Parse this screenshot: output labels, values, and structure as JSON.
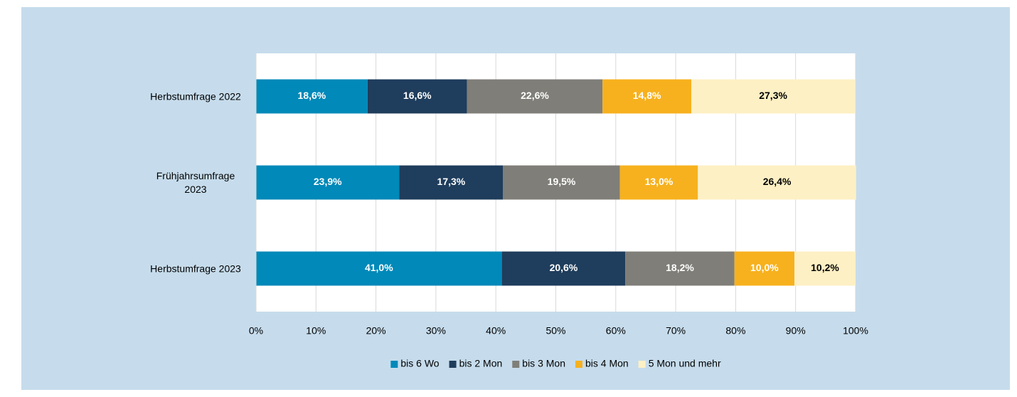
{
  "chart_data": {
    "type": "stacked_barh",
    "categories": [
      "Herbstumfrage 2022",
      "Frühjahrsumfrage 2023",
      "Herbstumfrage 2023"
    ],
    "series": [
      {
        "name": "bis 6 Wo",
        "color": "#0089b9",
        "label_color": "#ffffff",
        "values": [
          18.6,
          23.9,
          41.0
        ],
        "value_labels": [
          "18,6%",
          "23,9%",
          "41,0%"
        ]
      },
      {
        "name": "bis 2 Mon",
        "color": "#1f3d5c",
        "label_color": "#ffffff",
        "values": [
          16.6,
          17.3,
          20.6
        ],
        "value_labels": [
          "16,6%",
          "17,3%",
          "20,6%"
        ]
      },
      {
        "name": "bis 3 Mon",
        "color": "#7f7e78",
        "label_color": "#ffffff",
        "values": [
          22.6,
          19.5,
          18.2
        ],
        "value_labels": [
          "22,6%",
          "19,5%",
          "18,2%"
        ]
      },
      {
        "name": "bis 4 Mon",
        "color": "#f7b11e",
        "label_color": "#ffffff",
        "values": [
          14.8,
          13.0,
          10.0
        ],
        "value_labels": [
          "14,8%",
          "13,0%",
          "10,0%"
        ]
      },
      {
        "name": "5 Mon und mehr",
        "color": "#fdf0c4",
        "label_color": "#000000",
        "values": [
          27.3,
          26.4,
          10.2
        ],
        "value_labels": [
          "27,3%",
          "26,4%",
          "10,2%"
        ]
      }
    ],
    "xlim": [
      0,
      100
    ],
    "xticks": [
      {
        "value": 0,
        "label": "0%"
      },
      {
        "value": 10,
        "label": "10%"
      },
      {
        "value": 20,
        "label": "20%"
      },
      {
        "value": 30,
        "label": "30%"
      },
      {
        "value": 40,
        "label": "40%"
      },
      {
        "value": 50,
        "label": "50%"
      },
      {
        "value": 60,
        "label": "60%"
      },
      {
        "value": 70,
        "label": "70%"
      },
      {
        "value": 80,
        "label": "80%"
      },
      {
        "value": 90,
        "label": "90%"
      },
      {
        "value": 100,
        "label": "100%"
      }
    ],
    "grid": true,
    "legend": "bottom"
  }
}
